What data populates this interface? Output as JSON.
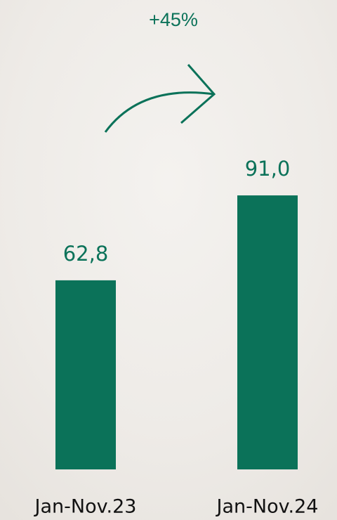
{
  "chart_data": {
    "type": "bar",
    "categories": [
      "Jan-Nov.23",
      "Jan-Nov.24"
    ],
    "values": [
      62.8,
      91.0
    ],
    "value_labels": [
      "62,8",
      "91,0"
    ],
    "color": "#0b7259",
    "annotation": "+45%"
  }
}
